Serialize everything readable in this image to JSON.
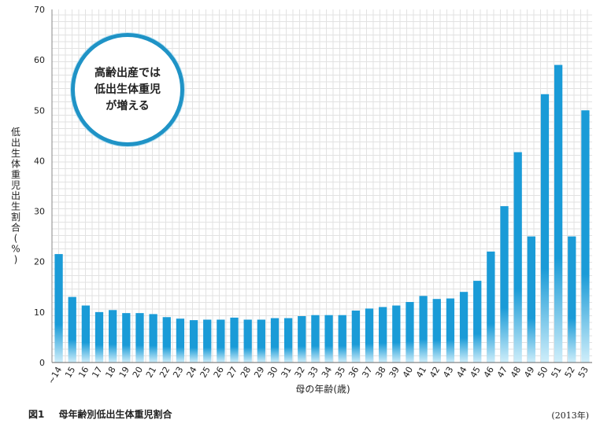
{
  "chart_data": {
    "type": "bar",
    "categories": [
      "~14",
      "15",
      "16",
      "17",
      "18",
      "19",
      "20",
      "21",
      "22",
      "23",
      "24",
      "25",
      "26",
      "27",
      "28",
      "29",
      "30",
      "31",
      "32",
      "33",
      "34",
      "35",
      "36",
      "37",
      "38",
      "39",
      "40",
      "41",
      "42",
      "43",
      "44",
      "45",
      "46",
      "47",
      "48",
      "49",
      "50",
      "51",
      "52",
      "53"
    ],
    "values": [
      21.5,
      13.0,
      11.3,
      10.0,
      10.4,
      9.8,
      9.8,
      9.6,
      9.0,
      8.7,
      8.4,
      8.5,
      8.5,
      8.9,
      8.5,
      8.5,
      8.8,
      8.8,
      9.2,
      9.4,
      9.4,
      9.4,
      10.3,
      10.7,
      11.0,
      11.3,
      12.0,
      13.2,
      12.6,
      12.7,
      14.0,
      16.2,
      22.0,
      31.0,
      41.7,
      25.0,
      53.2,
      59.0,
      25.0,
      50.0
    ],
    "ylabel": "低出生体重児出生割合(%)",
    "xlabel": "母の年齢(歳)",
    "ylim": [
      0,
      70
    ],
    "yticks": [
      0,
      10,
      20,
      30,
      40,
      50,
      60,
      70
    ],
    "grid": true,
    "bar_color": "#1a9bd7",
    "bar_color_bottom": "#cfeefa"
  },
  "callout": {
    "lines": [
      "高齢出産では",
      "低出生体重児",
      "が増える"
    ]
  },
  "caption": {
    "number": "図1",
    "title": "母年齢別低出生体重児割合",
    "year": "(2013年)"
  }
}
